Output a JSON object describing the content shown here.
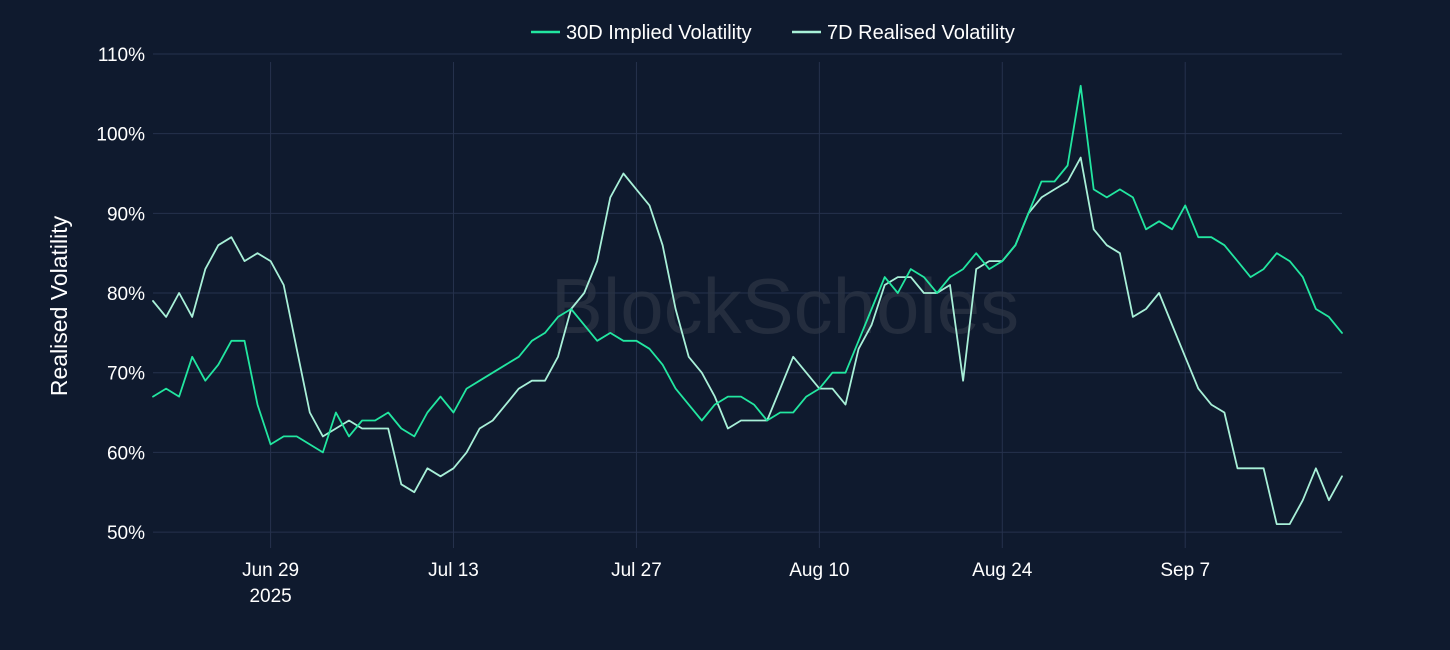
{
  "watermark": "BlockScholes",
  "colors": {
    "background": "#0f1a2e",
    "grid": "#26324d",
    "implied": "#22e6a0",
    "realised": "#a8f0d8"
  },
  "chart_data": {
    "type": "line",
    "xlabel": "",
    "ylabel": "Realised Volatility",
    "ylim": [
      48,
      111
    ],
    "x_range": [
      "2025-06-20",
      "2025-09-19"
    ],
    "x_ticks": [
      {
        "date": "2025-06-29",
        "label": "Jun 29",
        "sublabel": "2025"
      },
      {
        "date": "2025-07-13",
        "label": "Jul 13"
      },
      {
        "date": "2025-07-27",
        "label": "Jul 27"
      },
      {
        "date": "2025-08-10",
        "label": "Aug 10"
      },
      {
        "date": "2025-08-24",
        "label": "Aug 24"
      },
      {
        "date": "2025-09-07",
        "label": "Sep 7"
      }
    ],
    "y_ticks": [
      {
        "value": 50,
        "label": "50%"
      },
      {
        "value": 60,
        "label": "60%"
      },
      {
        "value": 70,
        "label": "70%"
      },
      {
        "value": 80,
        "label": "80%"
      },
      {
        "value": 90,
        "label": "90%"
      },
      {
        "value": 100,
        "label": "100%"
      },
      {
        "value": 110,
        "label": "110%"
      }
    ],
    "grid": true,
    "legend_position": "top-center",
    "series": [
      {
        "name": "30D Implied Volatility",
        "color": "#22e6a0",
        "points": [
          [
            "2025-06-20",
            67
          ],
          [
            "2025-06-21",
            68
          ],
          [
            "2025-06-22",
            67
          ],
          [
            "2025-06-23",
            72
          ],
          [
            "2025-06-24",
            69
          ],
          [
            "2025-06-25",
            71
          ],
          [
            "2025-06-26",
            74
          ],
          [
            "2025-06-27",
            74
          ],
          [
            "2025-06-28",
            66
          ],
          [
            "2025-06-29",
            61
          ],
          [
            "2025-06-30",
            62
          ],
          [
            "2025-07-01",
            62
          ],
          [
            "2025-07-02",
            61
          ],
          [
            "2025-07-03",
            60
          ],
          [
            "2025-07-04",
            65
          ],
          [
            "2025-07-05",
            62
          ],
          [
            "2025-07-06",
            64
          ],
          [
            "2025-07-07",
            64
          ],
          [
            "2025-07-08",
            65
          ],
          [
            "2025-07-09",
            63
          ],
          [
            "2025-07-10",
            62
          ],
          [
            "2025-07-11",
            65
          ],
          [
            "2025-07-12",
            67
          ],
          [
            "2025-07-13",
            65
          ],
          [
            "2025-07-14",
            68
          ],
          [
            "2025-07-15",
            69
          ],
          [
            "2025-07-16",
            70
          ],
          [
            "2025-07-17",
            71
          ],
          [
            "2025-07-18",
            72
          ],
          [
            "2025-07-19",
            74
          ],
          [
            "2025-07-20",
            75
          ],
          [
            "2025-07-21",
            77
          ],
          [
            "2025-07-22",
            78
          ],
          [
            "2025-07-23",
            76
          ],
          [
            "2025-07-24",
            74
          ],
          [
            "2025-07-25",
            75
          ],
          [
            "2025-07-26",
            74
          ],
          [
            "2025-07-27",
            74
          ],
          [
            "2025-07-28",
            73
          ],
          [
            "2025-07-29",
            71
          ],
          [
            "2025-07-30",
            68
          ],
          [
            "2025-07-31",
            66
          ],
          [
            "2025-08-01",
            64
          ],
          [
            "2025-08-02",
            66
          ],
          [
            "2025-08-03",
            67
          ],
          [
            "2025-08-04",
            67
          ],
          [
            "2025-08-05",
            66
          ],
          [
            "2025-08-06",
            64
          ],
          [
            "2025-08-07",
            65
          ],
          [
            "2025-08-08",
            65
          ],
          [
            "2025-08-09",
            67
          ],
          [
            "2025-08-10",
            68
          ],
          [
            "2025-08-11",
            70
          ],
          [
            "2025-08-12",
            70
          ],
          [
            "2025-08-13",
            74
          ],
          [
            "2025-08-14",
            78
          ],
          [
            "2025-08-15",
            82
          ],
          [
            "2025-08-16",
            80
          ],
          [
            "2025-08-17",
            83
          ],
          [
            "2025-08-18",
            82
          ],
          [
            "2025-08-19",
            80
          ],
          [
            "2025-08-20",
            82
          ],
          [
            "2025-08-21",
            83
          ],
          [
            "2025-08-22",
            85
          ],
          [
            "2025-08-23",
            83
          ],
          [
            "2025-08-24",
            84
          ],
          [
            "2025-08-25",
            86
          ],
          [
            "2025-08-26",
            90
          ],
          [
            "2025-08-27",
            94
          ],
          [
            "2025-08-28",
            94
          ],
          [
            "2025-08-29",
            96
          ],
          [
            "2025-08-30",
            106
          ],
          [
            "2025-08-31",
            93
          ],
          [
            "2025-09-01",
            92
          ],
          [
            "2025-09-02",
            93
          ],
          [
            "2025-09-03",
            92
          ],
          [
            "2025-09-04",
            88
          ],
          [
            "2025-09-05",
            89
          ],
          [
            "2025-09-06",
            88
          ],
          [
            "2025-09-07",
            91
          ],
          [
            "2025-09-08",
            87
          ],
          [
            "2025-09-09",
            87
          ],
          [
            "2025-09-10",
            86
          ],
          [
            "2025-09-11",
            84
          ],
          [
            "2025-09-12",
            82
          ],
          [
            "2025-09-13",
            83
          ],
          [
            "2025-09-14",
            85
          ],
          [
            "2025-09-15",
            84
          ],
          [
            "2025-09-16",
            82
          ],
          [
            "2025-09-17",
            78
          ],
          [
            "2025-09-18",
            77
          ],
          [
            "2025-09-19",
            75
          ]
        ]
      },
      {
        "name": "7D Realised Volatility",
        "color": "#a8f0d8",
        "points": [
          [
            "2025-06-20",
            79
          ],
          [
            "2025-06-21",
            77
          ],
          [
            "2025-06-22",
            80
          ],
          [
            "2025-06-23",
            77
          ],
          [
            "2025-06-24",
            83
          ],
          [
            "2025-06-25",
            86
          ],
          [
            "2025-06-26",
            87
          ],
          [
            "2025-06-27",
            84
          ],
          [
            "2025-06-28",
            85
          ],
          [
            "2025-06-29",
            84
          ],
          [
            "2025-06-30",
            81
          ],
          [
            "2025-07-01",
            73
          ],
          [
            "2025-07-02",
            65
          ],
          [
            "2025-07-03",
            62
          ],
          [
            "2025-07-04",
            63
          ],
          [
            "2025-07-05",
            64
          ],
          [
            "2025-07-06",
            63
          ],
          [
            "2025-07-07",
            63
          ],
          [
            "2025-07-08",
            63
          ],
          [
            "2025-07-09",
            56
          ],
          [
            "2025-07-10",
            55
          ],
          [
            "2025-07-11",
            58
          ],
          [
            "2025-07-12",
            57
          ],
          [
            "2025-07-13",
            58
          ],
          [
            "2025-07-14",
            60
          ],
          [
            "2025-07-15",
            63
          ],
          [
            "2025-07-16",
            64
          ],
          [
            "2025-07-17",
            66
          ],
          [
            "2025-07-18",
            68
          ],
          [
            "2025-07-19",
            69
          ],
          [
            "2025-07-20",
            69
          ],
          [
            "2025-07-21",
            72
          ],
          [
            "2025-07-22",
            78
          ],
          [
            "2025-07-23",
            80
          ],
          [
            "2025-07-24",
            84
          ],
          [
            "2025-07-25",
            92
          ],
          [
            "2025-07-26",
            95
          ],
          [
            "2025-07-27",
            93
          ],
          [
            "2025-07-28",
            91
          ],
          [
            "2025-07-29",
            86
          ],
          [
            "2025-07-30",
            78
          ],
          [
            "2025-07-31",
            72
          ],
          [
            "2025-08-01",
            70
          ],
          [
            "2025-08-02",
            67
          ],
          [
            "2025-08-03",
            63
          ],
          [
            "2025-08-04",
            64
          ],
          [
            "2025-08-05",
            64
          ],
          [
            "2025-08-06",
            64
          ],
          [
            "2025-08-07",
            68
          ],
          [
            "2025-08-08",
            72
          ],
          [
            "2025-08-09",
            70
          ],
          [
            "2025-08-10",
            68
          ],
          [
            "2025-08-11",
            68
          ],
          [
            "2025-08-12",
            66
          ],
          [
            "2025-08-13",
            73
          ],
          [
            "2025-08-14",
            76
          ],
          [
            "2025-08-15",
            81
          ],
          [
            "2025-08-16",
            82
          ],
          [
            "2025-08-17",
            82
          ],
          [
            "2025-08-18",
            80
          ],
          [
            "2025-08-19",
            80
          ],
          [
            "2025-08-20",
            81
          ],
          [
            "2025-08-21",
            69
          ],
          [
            "2025-08-22",
            83
          ],
          [
            "2025-08-23",
            84
          ],
          [
            "2025-08-24",
            84
          ],
          [
            "2025-08-25",
            86
          ],
          [
            "2025-08-26",
            90
          ],
          [
            "2025-08-27",
            92
          ],
          [
            "2025-08-28",
            93
          ],
          [
            "2025-08-29",
            94
          ],
          [
            "2025-08-30",
            97
          ],
          [
            "2025-08-31",
            88
          ],
          [
            "2025-09-01",
            86
          ],
          [
            "2025-09-02",
            85
          ],
          [
            "2025-09-03",
            77
          ],
          [
            "2025-09-04",
            78
          ],
          [
            "2025-09-05",
            80
          ],
          [
            "2025-09-06",
            76
          ],
          [
            "2025-09-07",
            72
          ],
          [
            "2025-09-08",
            68
          ],
          [
            "2025-09-09",
            66
          ],
          [
            "2025-09-10",
            65
          ],
          [
            "2025-09-11",
            58
          ],
          [
            "2025-09-12",
            58
          ],
          [
            "2025-09-13",
            58
          ],
          [
            "2025-09-14",
            51
          ],
          [
            "2025-09-15",
            51
          ],
          [
            "2025-09-16",
            54
          ],
          [
            "2025-09-17",
            58
          ],
          [
            "2025-09-18",
            54
          ],
          [
            "2025-09-19",
            57
          ]
        ]
      }
    ]
  }
}
